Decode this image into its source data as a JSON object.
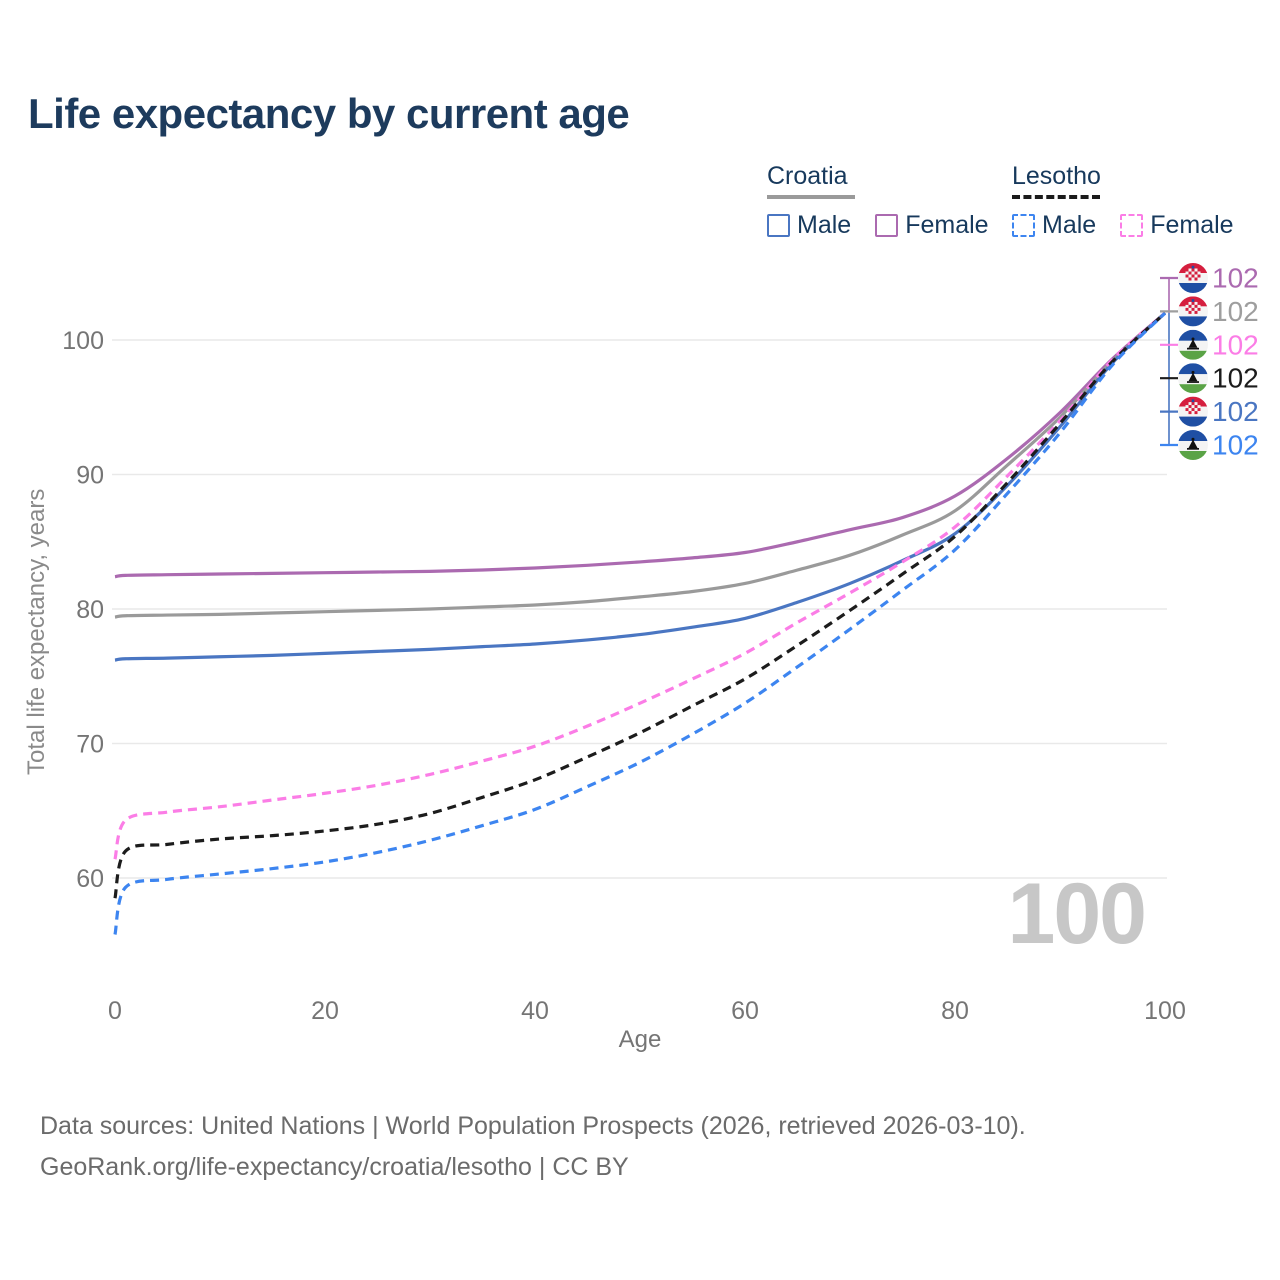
{
  "title": "Life expectancy by current age",
  "legend": {
    "groups": [
      {
        "country": "Croatia",
        "line_style": "solid",
        "underline_color": "#9a9a9a",
        "items": [
          {
            "label": "Male",
            "color": "#4a76c2"
          },
          {
            "label": "Female",
            "color": "#ab6ab0"
          }
        ]
      },
      {
        "country": "Lesotho",
        "line_style": "dashed",
        "underline_color": "#1b1b1b",
        "items": [
          {
            "label": "Male",
            "color": "#3d85f0"
          },
          {
            "label": "Female",
            "color": "#fb7de6"
          }
        ]
      }
    ]
  },
  "axes": {
    "y_title": "Total life expectancy, years",
    "x_title": "Age",
    "y_ticks": [
      100,
      90,
      80,
      70,
      60
    ],
    "x_ticks": [
      0,
      20,
      40,
      60,
      80,
      100
    ]
  },
  "watermark": "100",
  "chart_data": {
    "type": "line",
    "title": "Life expectancy by current age",
    "xlabel": "Age",
    "ylabel": "Total life expectancy, years",
    "xlim": [
      0,
      100
    ],
    "ylim": [
      54,
      104
    ],
    "grid": "horizontal",
    "legend_position": "top-right",
    "series": [
      {
        "id": "croatia-female",
        "name": "Croatia Female",
        "country": "Croatia",
        "sex": "Female",
        "color": "#ab6ab0",
        "dash": false,
        "points": [
          [
            0,
            82.4
          ],
          [
            1,
            82.5
          ],
          [
            5,
            82.55
          ],
          [
            10,
            82.6
          ],
          [
            15,
            82.65
          ],
          [
            20,
            82.7
          ],
          [
            25,
            82.75
          ],
          [
            30,
            82.8
          ],
          [
            35,
            82.9
          ],
          [
            40,
            83.05
          ],
          [
            45,
            83.25
          ],
          [
            50,
            83.5
          ],
          [
            55,
            83.8
          ],
          [
            60,
            84.2
          ],
          [
            65,
            85.0
          ],
          [
            70,
            85.9
          ],
          [
            75,
            86.8
          ],
          [
            80,
            88.4
          ],
          [
            85,
            91.2
          ],
          [
            90,
            94.6
          ],
          [
            95,
            98.6
          ],
          [
            100,
            102
          ]
        ]
      },
      {
        "id": "croatia-all",
        "name": "Croatia",
        "country": "Croatia",
        "sex": "Both",
        "color": "#9a9a9a",
        "dash": false,
        "points": [
          [
            0,
            79.4
          ],
          [
            1,
            79.5
          ],
          [
            5,
            79.55
          ],
          [
            10,
            79.6
          ],
          [
            15,
            79.7
          ],
          [
            20,
            79.8
          ],
          [
            25,
            79.9
          ],
          [
            30,
            80.0
          ],
          [
            35,
            80.15
          ],
          [
            40,
            80.3
          ],
          [
            45,
            80.55
          ],
          [
            50,
            80.9
          ],
          [
            55,
            81.3
          ],
          [
            60,
            81.9
          ],
          [
            65,
            82.9
          ],
          [
            70,
            84.0
          ],
          [
            75,
            85.5
          ],
          [
            80,
            87.3
          ],
          [
            85,
            90.7
          ],
          [
            90,
            94.25
          ],
          [
            95,
            98.45
          ],
          [
            100,
            102
          ]
        ]
      },
      {
        "id": "croatia-male",
        "name": "Croatia Male",
        "country": "Croatia",
        "sex": "Male",
        "color": "#4a76c2",
        "dash": false,
        "points": [
          [
            0,
            76.2
          ],
          [
            1,
            76.3
          ],
          [
            5,
            76.35
          ],
          [
            10,
            76.45
          ],
          [
            15,
            76.55
          ],
          [
            20,
            76.7
          ],
          [
            25,
            76.85
          ],
          [
            30,
            77.0
          ],
          [
            35,
            77.2
          ],
          [
            40,
            77.4
          ],
          [
            45,
            77.7
          ],
          [
            50,
            78.1
          ],
          [
            55,
            78.65
          ],
          [
            60,
            79.3
          ],
          [
            65,
            80.5
          ],
          [
            70,
            81.9
          ],
          [
            75,
            83.6
          ],
          [
            80,
            85.6
          ],
          [
            85,
            89.2
          ],
          [
            90,
            93.55
          ],
          [
            95,
            98.3
          ],
          [
            100,
            102
          ]
        ]
      },
      {
        "id": "lesotho-female",
        "name": "Lesotho Female",
        "country": "Lesotho",
        "sex": "Female",
        "color": "#fb7de6",
        "dash": true,
        "points": [
          [
            0,
            61.4
          ],
          [
            1,
            64.3
          ],
          [
            5,
            64.9
          ],
          [
            10,
            65.3
          ],
          [
            15,
            65.8
          ],
          [
            20,
            66.3
          ],
          [
            25,
            66.9
          ],
          [
            30,
            67.7
          ],
          [
            35,
            68.7
          ],
          [
            40,
            69.8
          ],
          [
            45,
            71.3
          ],
          [
            50,
            73.0
          ],
          [
            55,
            74.8
          ],
          [
            60,
            76.7
          ],
          [
            65,
            79.0
          ],
          [
            70,
            81.2
          ],
          [
            75,
            83.5
          ],
          [
            80,
            86.1
          ],
          [
            85,
            89.9
          ],
          [
            90,
            94.0
          ],
          [
            95,
            98.55
          ],
          [
            100,
            102
          ]
        ]
      },
      {
        "id": "lesotho-all",
        "name": "Lesotho",
        "country": "Lesotho",
        "sex": "Both",
        "color": "#1c1c1c",
        "dash": true,
        "points": [
          [
            0,
            58.5
          ],
          [
            1,
            62.0
          ],
          [
            5,
            62.5
          ],
          [
            10,
            62.9
          ],
          [
            15,
            63.15
          ],
          [
            20,
            63.5
          ],
          [
            25,
            64.0
          ],
          [
            30,
            64.8
          ],
          [
            35,
            66.0
          ],
          [
            40,
            67.3
          ],
          [
            45,
            69.0
          ],
          [
            50,
            70.8
          ],
          [
            55,
            72.8
          ],
          [
            60,
            74.8
          ],
          [
            65,
            77.3
          ],
          [
            70,
            79.9
          ],
          [
            75,
            82.6
          ],
          [
            80,
            85.4
          ],
          [
            85,
            89.4
          ],
          [
            90,
            93.8
          ],
          [
            95,
            98.4
          ],
          [
            100,
            102
          ]
        ]
      },
      {
        "id": "lesotho-male",
        "name": "Lesotho Male",
        "country": "Lesotho",
        "sex": "Male",
        "color": "#3d85f0",
        "dash": true,
        "points": [
          [
            0,
            55.8
          ],
          [
            1,
            59.3
          ],
          [
            5,
            59.9
          ],
          [
            10,
            60.3
          ],
          [
            15,
            60.7
          ],
          [
            20,
            61.2
          ],
          [
            25,
            61.9
          ],
          [
            30,
            62.8
          ],
          [
            35,
            63.9
          ],
          [
            40,
            65.1
          ],
          [
            45,
            66.8
          ],
          [
            50,
            68.6
          ],
          [
            55,
            70.7
          ],
          [
            60,
            73.0
          ],
          [
            65,
            75.7
          ],
          [
            70,
            78.5
          ],
          [
            75,
            81.4
          ],
          [
            80,
            84.4
          ],
          [
            85,
            88.6
          ],
          [
            90,
            93.1
          ],
          [
            95,
            98.15
          ],
          [
            100,
            102
          ]
        ]
      }
    ]
  },
  "endpoint_labels": [
    {
      "flag": "croatia",
      "series": "croatia-female",
      "value": "102",
      "color": "#ab6ab0"
    },
    {
      "flag": "croatia",
      "series": "croatia-all",
      "value": "102",
      "color": "#9e9e9e"
    },
    {
      "flag": "lesotho",
      "series": "lesotho-female",
      "value": "102",
      "color": "#fb7de6"
    },
    {
      "flag": "lesotho",
      "series": "lesotho-all",
      "value": "102",
      "color": "#1c1c1c"
    },
    {
      "flag": "croatia",
      "series": "croatia-male",
      "value": "102",
      "color": "#4a76c2"
    },
    {
      "flag": "lesotho",
      "series": "lesotho-male",
      "value": "102",
      "color": "#3d85f0"
    }
  ],
  "footer": {
    "line1": "Data sources: United Nations | World Population Prospects (2026, retrieved 2026-03-10).",
    "line2": "GeoRank.org/life-expectancy/croatia/lesotho | CC BY"
  },
  "colors": {
    "title_text": "#1d3b5d",
    "axis_text": "#757575",
    "gridline": "#e9e9e9",
    "watermark": "#c7c7c7",
    "footer_text": "#6b6b6b",
    "croatia_flag": {
      "red": "#d51f3e",
      "white": "#f4f4f4",
      "blue": "#1f4fa4"
    },
    "lesotho_flag": {
      "blue": "#1f4fa4",
      "white": "#f4f4f4",
      "green": "#5aa346",
      "hat": "#111111"
    }
  }
}
